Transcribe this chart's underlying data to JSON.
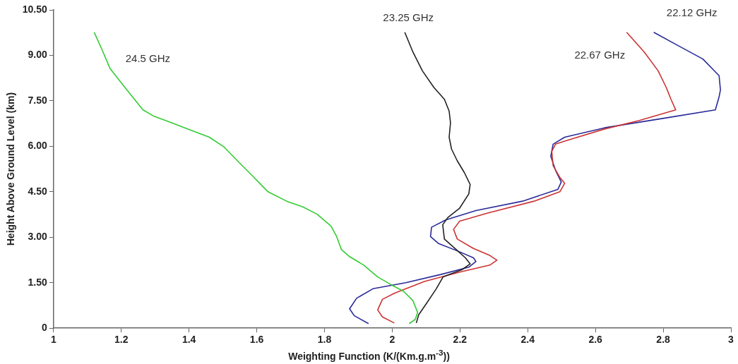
{
  "chart_data": {
    "type": "line",
    "xlabel": "Weighting Function (K/(Km.g.m$^{-3}$))",
    "ylabel": "Height Above Ground Level (km)",
    "xlim": [
      1,
      3
    ],
    "xticks": [
      1,
      1.2,
      1.4,
      1.6,
      1.8,
      2,
      2.2,
      2.4,
      2.6,
      2.8,
      3
    ],
    "ylim": [
      0,
      10.5
    ],
    "yticks": [
      0,
      {
        "value": 1.5,
        "label": "1.50"
      },
      {
        "value": 3,
        "label": "3.00"
      },
      {
        "value": 4.5,
        "label": "4.50"
      },
      {
        "value": 6,
        "label": "6.00"
      },
      {
        "value": 7.5,
        "label": "7.50"
      },
      {
        "value": 9,
        "label": "9.00"
      },
      {
        "value": 10.5,
        "label": "10.50"
      }
    ],
    "legend": false,
    "marker": "none",
    "line_style": "solid",
    "series": [
      {
        "name": "24.5 GHz",
        "color": "#33cc33",
        "x": [
          1.12,
          1.143,
          1.167,
          1.205,
          1.233,
          1.264,
          1.295,
          1.35,
          1.405,
          1.46,
          1.502,
          1.543,
          1.585,
          1.633,
          1.688,
          1.736,
          1.778,
          1.819,
          1.836,
          1.85,
          1.874,
          1.916,
          1.957,
          1.999,
          2.033,
          2.061,
          2.075,
          2.068,
          2.05
        ],
        "values": [
          9.76,
          9.19,
          8.56,
          8.02,
          7.63,
          7.2,
          7.0,
          6.77,
          6.53,
          6.3,
          5.99,
          5.52,
          5.05,
          4.5,
          4.19,
          4.0,
          3.76,
          3.37,
          3.02,
          2.59,
          2.36,
          2.08,
          1.69,
          1.42,
          1.22,
          0.91,
          0.52,
          0.29,
          0.15
        ]
      },
      {
        "name": "23.25 GHz",
        "color": "#222222",
        "x": [
          2.037,
          2.061,
          2.089,
          2.123,
          2.154,
          2.168,
          2.172,
          2.168,
          2.175,
          2.192,
          2.213,
          2.23,
          2.226,
          2.199,
          2.164,
          2.149,
          2.154,
          2.185,
          2.216,
          2.23,
          2.206,
          2.15,
          2.13,
          2.102,
          2.078,
          2.071
        ],
        "values": [
          9.76,
          9.11,
          8.49,
          7.94,
          7.55,
          7.16,
          6.77,
          6.3,
          5.91,
          5.52,
          5.13,
          4.74,
          4.43,
          3.96,
          3.65,
          3.41,
          2.94,
          2.63,
          2.32,
          2.12,
          1.93,
          1.69,
          1.3,
          0.83,
          0.44,
          0.17
        ]
      },
      {
        "name": "22.67 GHz",
        "color": "#cc3333",
        "x": [
          2.692,
          2.744,
          2.785,
          2.809,
          2.823,
          2.837,
          2.73,
          2.627,
          2.523,
          2.482,
          2.471,
          2.475,
          2.495,
          2.509,
          2.495,
          2.419,
          2.282,
          2.199,
          2.181,
          2.192,
          2.24,
          2.288,
          2.309,
          2.288,
          2.199,
          2.095,
          2.006,
          1.971,
          1.957,
          1.971,
          2.006
        ],
        "values": [
          9.76,
          9.11,
          8.49,
          7.94,
          7.55,
          7.2,
          6.85,
          6.57,
          6.22,
          6.07,
          5.83,
          5.36,
          4.97,
          4.78,
          4.5,
          4.19,
          3.8,
          3.53,
          3.26,
          2.94,
          2.63,
          2.4,
          2.24,
          2.08,
          1.85,
          1.54,
          1.15,
          0.95,
          0.6,
          0.37,
          0.17
        ]
      },
      {
        "name": "22.12 GHz",
        "color": "#2a2a99",
        "x": [
          2.772,
          2.841,
          2.917,
          2.965,
          2.969,
          2.965,
          2.954,
          2.799,
          2.627,
          2.509,
          2.475,
          2.468,
          2.482,
          2.499,
          2.489,
          2.385,
          2.247,
          2.158,
          2.116,
          2.113,
          2.137,
          2.192,
          2.24,
          2.247,
          2.226,
          2.143,
          2.04,
          1.943,
          1.895,
          1.874,
          1.888,
          1.93
        ],
        "values": [
          9.76,
          9.34,
          8.88,
          8.33,
          7.86,
          7.63,
          7.2,
          6.92,
          6.61,
          6.3,
          6.07,
          5.67,
          5.21,
          4.82,
          4.58,
          4.19,
          3.88,
          3.57,
          3.33,
          3.02,
          2.79,
          2.55,
          2.32,
          2.2,
          2.01,
          1.77,
          1.5,
          1.3,
          0.99,
          0.64,
          0.41,
          0.15
        ]
      }
    ]
  }
}
